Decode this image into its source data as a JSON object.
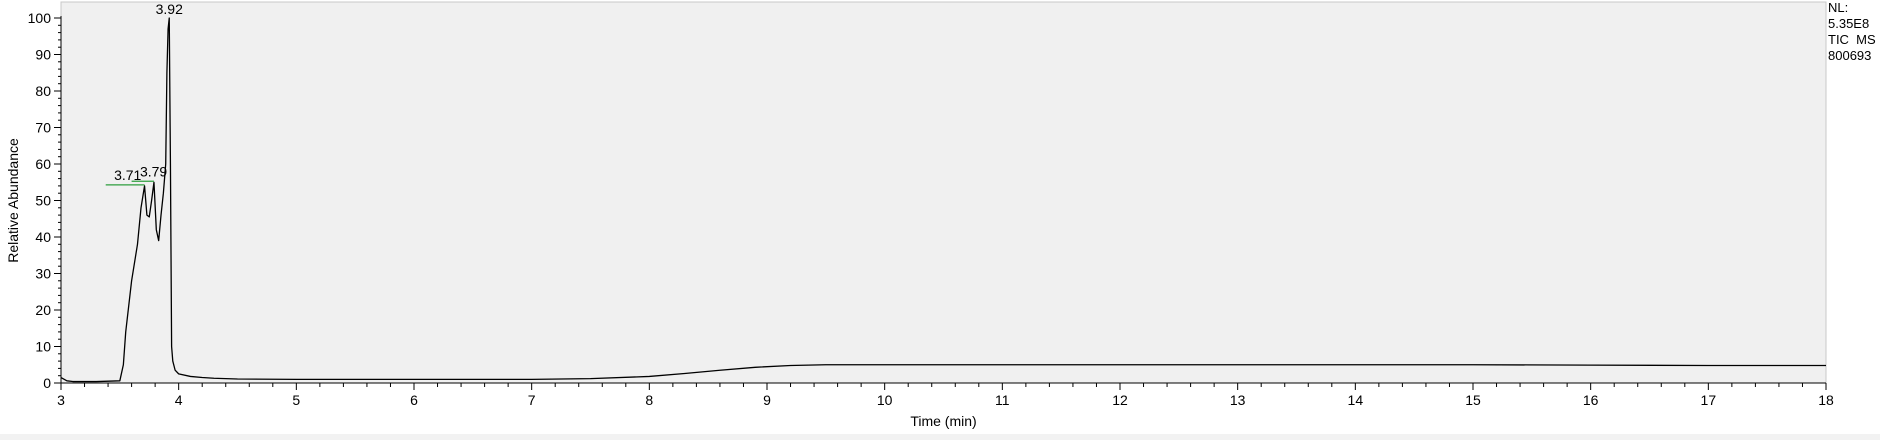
{
  "chart_data": {
    "type": "line",
    "title": "",
    "xlabel": "Time (min)",
    "ylabel": "Relative Abundance",
    "xlim": [
      3,
      18
    ],
    "ylim": [
      0,
      100
    ],
    "xticks": [
      "3",
      "4",
      "5",
      "6",
      "7",
      "8",
      "9",
      "10",
      "11",
      "12",
      "13",
      "14",
      "15",
      "16",
      "17",
      "18"
    ],
    "yticks": [
      "0",
      "10",
      "20",
      "30",
      "40",
      "50",
      "60",
      "70",
      "80",
      "90",
      "100"
    ],
    "grid": false,
    "colors": {
      "background": "#f0f0f0",
      "trace": "#000000",
      "peak_marker": "#2e9e3e"
    },
    "series": [
      {
        "x": [
          3.0,
          3.05,
          3.1,
          3.2,
          3.3,
          3.4,
          3.5,
          3.53,
          3.55,
          3.6,
          3.65,
          3.68,
          3.71,
          3.73,
          3.75,
          3.77,
          3.79,
          3.81,
          3.83,
          3.85,
          3.87,
          3.89,
          3.9,
          3.91,
          3.92,
          3.93,
          3.94,
          3.95,
          3.97,
          4.0,
          4.1,
          4.2,
          4.3,
          4.5,
          5.0,
          5.5,
          6.0,
          6.5,
          7.0,
          7.5,
          8.0,
          8.3,
          8.6,
          8.9,
          9.2,
          9.5,
          10.0,
          11.0,
          12.0,
          13.0,
          14.0,
          15.0,
          16.0,
          17.0,
          18.0
        ],
        "y": [
          1.5,
          0.6,
          0.4,
          0.4,
          0.4,
          0.5,
          0.6,
          5.0,
          14.0,
          28.0,
          38.0,
          48.0,
          54.0,
          46.0,
          45.5,
          50.0,
          55.0,
          42.0,
          39.0,
          46.0,
          52.0,
          60.0,
          85.0,
          97.0,
          100.0,
          60.0,
          10.0,
          6.0,
          3.5,
          2.5,
          1.8,
          1.5,
          1.3,
          1.1,
          1.0,
          1.0,
          1.0,
          1.0,
          1.0,
          1.2,
          1.8,
          2.6,
          3.5,
          4.3,
          4.8,
          5.0,
          5.0,
          5.0,
          5.0,
          5.0,
          5.0,
          5.0,
          4.9,
          4.8,
          4.8
        ]
      }
    ],
    "peak_labels": [
      {
        "label": "3.71",
        "x": 3.71,
        "y": 54.0,
        "tag_from": 3.38
      },
      {
        "label": "3.79",
        "x": 3.79,
        "y": 55.0,
        "tag_from": 3.6
      },
      {
        "label": "3.92",
        "x": 3.92,
        "y": 100.0
      }
    ],
    "annotations": [
      "NL:",
      "5.35E8",
      "TIC  MS",
      "800693"
    ]
  }
}
